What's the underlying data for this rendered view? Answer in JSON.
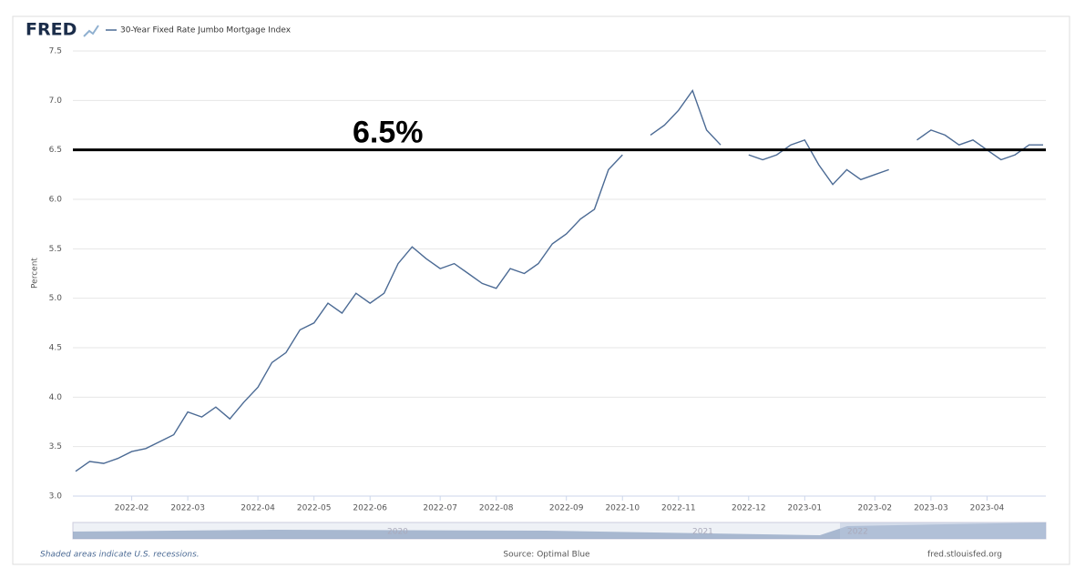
{
  "brand": "FRED",
  "footer": {
    "recessions": "Shaded areas indicate U.S. recessions.",
    "source": "Source: Optimal Blue",
    "site": "fred.stlouisfed.org"
  },
  "navigator": {
    "labels": [
      "2020",
      "2021",
      "2022"
    ]
  },
  "chart_data": {
    "type": "line",
    "ylabel": "Percent",
    "categories": [
      null,
      null,
      null,
      null,
      "2022-02",
      null,
      null,
      null,
      "2022-03",
      null,
      null,
      null,
      null,
      "2022-04",
      null,
      null,
      null,
      "2022-05",
      null,
      null,
      null,
      "2022-06",
      null,
      null,
      null,
      null,
      "2022-07",
      null,
      null,
      null,
      "2022-08",
      null,
      null,
      null,
      null,
      "2022-09",
      null,
      null,
      null,
      "2022-10",
      null,
      null,
      null,
      "2022-11",
      null,
      null,
      null,
      null,
      "2022-12",
      null,
      null,
      null,
      "2023-01",
      null,
      null,
      null,
      null,
      "2023-02",
      null,
      null,
      null,
      "2023-03",
      null,
      null,
      null,
      "2023-04",
      null,
      null,
      null,
      null
    ],
    "series": [
      {
        "name": "30-Year Fixed Rate Jumbo Mortgage Index",
        "color": "#4b6a94",
        "values": [
          3.25,
          3.35,
          3.33,
          3.38,
          3.45,
          3.48,
          3.55,
          3.62,
          3.85,
          3.8,
          3.9,
          3.78,
          3.95,
          4.1,
          4.35,
          4.45,
          4.68,
          4.75,
          4.95,
          4.85,
          5.05,
          4.95,
          5.05,
          5.35,
          5.52,
          5.4,
          5.3,
          5.35,
          5.25,
          5.15,
          5.1,
          5.3,
          5.25,
          5.35,
          5.55,
          5.65,
          5.8,
          5.9,
          6.3,
          6.45,
          null,
          6.65,
          6.75,
          6.9,
          7.1,
          6.7,
          6.55,
          null,
          6.45,
          6.4,
          6.45,
          6.55,
          6.6,
          6.35,
          6.15,
          6.3,
          6.2,
          6.25,
          6.3,
          null,
          6.6,
          6.7,
          6.65,
          6.55,
          6.6,
          6.5,
          6.4,
          6.45,
          6.55,
          6.55
        ]
      }
    ],
    "ylim": [
      3,
      7.5
    ],
    "yticks": [
      {
        "value": 3,
        "label": "3.0"
      },
      3.5,
      {
        "value": 4,
        "label": "4.0"
      },
      4.5,
      {
        "value": 5,
        "label": "5.0"
      },
      5.5,
      {
        "value": 6,
        "label": "6.0"
      },
      6.5,
      {
        "value": 7,
        "label": "7.0"
      },
      7.5
    ],
    "grid": true,
    "reference_line": {
      "value": 6.5,
      "label": "6.5%",
      "color": "#000000"
    }
  }
}
